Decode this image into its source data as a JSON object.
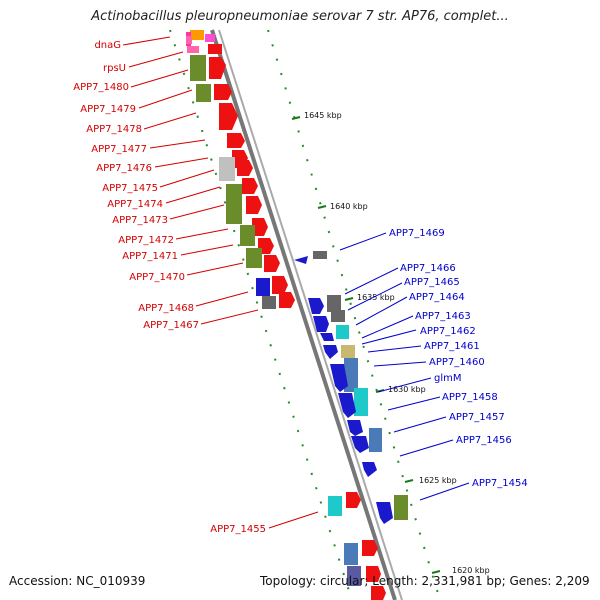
{
  "title": "Actinobacillus pleuropneumoniae serovar 7 str. AP76, complet...",
  "footer": {
    "accession": "Accession: NC_010939",
    "info": "Topology: circular; Length: 2,331,981 bp; Genes: 2,209"
  },
  "colors": {
    "forward_label": "#d40000",
    "reverse_label": "#0000cc",
    "backbone": "#777777",
    "tick": "#1a7a1a"
  },
  "kbp_labels": [
    "1645 kbp",
    "1640 kbp",
    "1635 kbp",
    "1630 kbp",
    "1625 kbp",
    "1620 kbp"
  ],
  "left_labels": [
    "dnaG",
    "rpsU",
    "APP7_1480",
    "APP7_1479",
    "APP7_1478",
    "APP7_1477",
    "APP7_1476",
    "APP7_1475",
    "APP7_1474",
    "APP7_1473",
    "APP7_1472",
    "APP7_1471",
    "APP7_1470",
    "APP7_1468",
    "APP7_1467",
    "APP7_1455"
  ],
  "right_labels": [
    "APP7_1469",
    "APP7_1466",
    "APP7_1465",
    "APP7_1464",
    "APP7_1463",
    "APP7_1462",
    "APP7_1461",
    "APP7_1460",
    "glmM",
    "APP7_1458",
    "APP7_1457",
    "APP7_1456",
    "APP7_1454"
  ]
}
